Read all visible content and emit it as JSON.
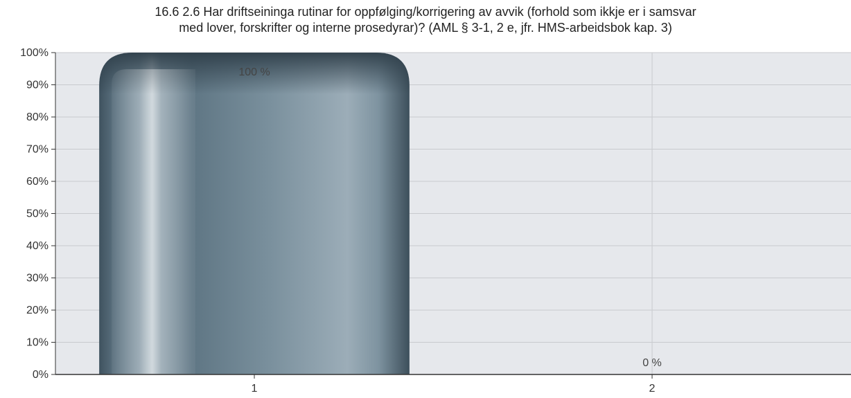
{
  "chart_data": {
    "type": "bar",
    "title_lines": [
      "16.6 2.6 Har driftseininga rutinar for oppfølging/korrigering av avvik (forhold som ikkje er i samsvar",
      "med lover, forskrifter og interne prosedyrar)? (AML § 3-1, 2 e, jfr. HMS-arbeidsbok kap. 3)"
    ],
    "categories": [
      "1",
      "2"
    ],
    "values": [
      100,
      0
    ],
    "data_labels": [
      "100 %",
      "0 %"
    ],
    "ylim": [
      0,
      100
    ],
    "y_ticks": [
      0,
      10,
      20,
      30,
      40,
      50,
      60,
      70,
      80,
      90,
      100
    ],
    "y_tick_suffix": "%",
    "xlabel": "",
    "ylabel": "",
    "grid": true,
    "legend": "none",
    "colors": {
      "plot_background": "#e6e8ec",
      "grid": "#c8cace",
      "bar_main": "#6f8796",
      "bar_dark": "#3f525f",
      "bar_light": "#a9b8c2",
      "axis": "#333333"
    }
  }
}
